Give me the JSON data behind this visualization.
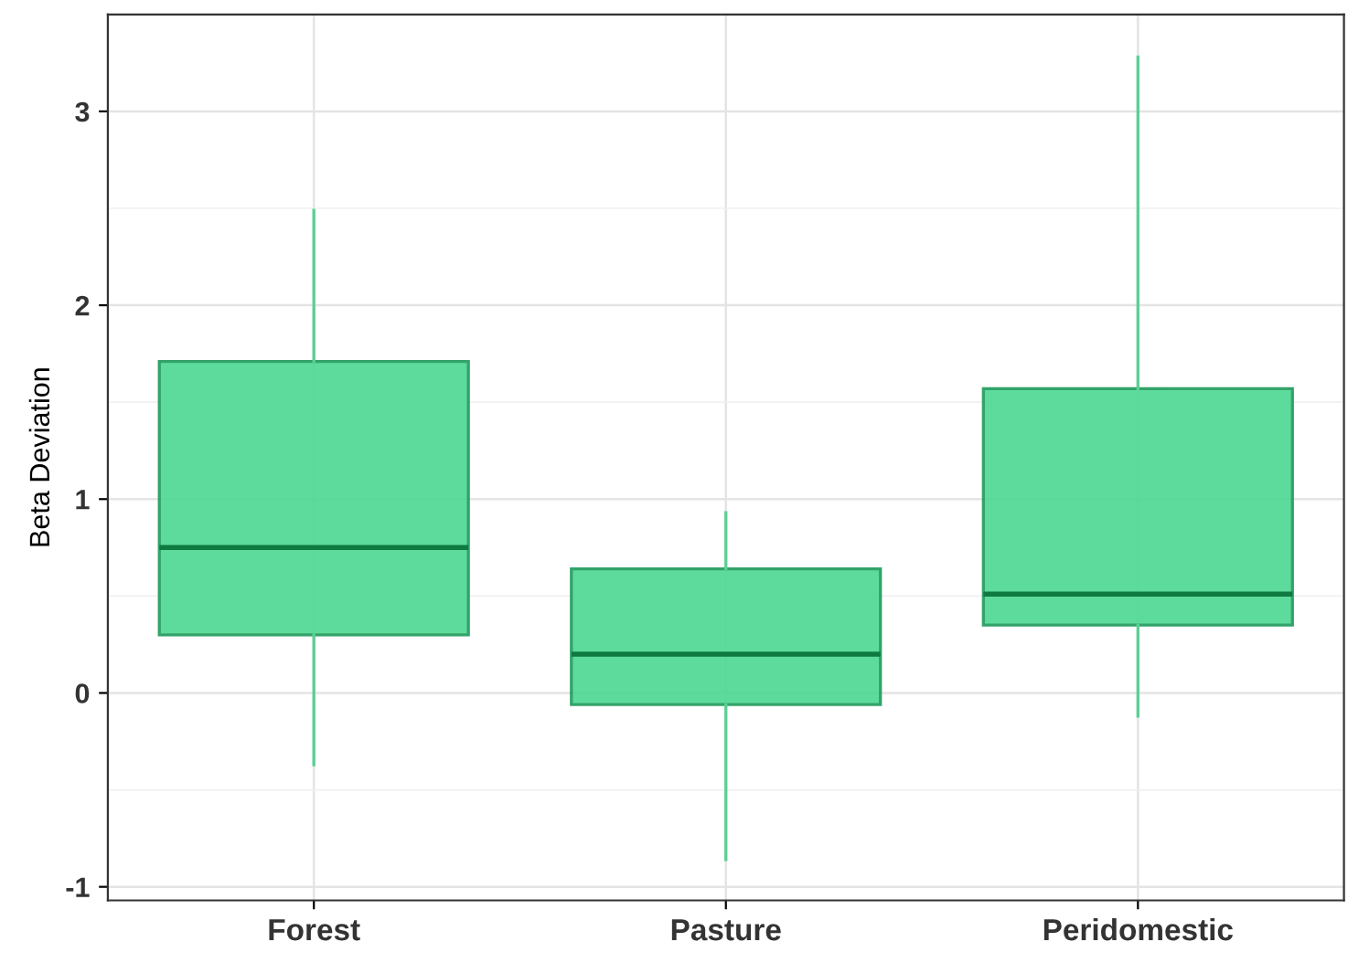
{
  "chart_data": {
    "type": "box",
    "ylabel": "Beta Deviation",
    "categories": [
      "Forest",
      "Pasture",
      "Peridomestic"
    ],
    "boxes": [
      {
        "low": -0.37,
        "q1": 0.3,
        "median": 0.75,
        "q3": 1.71,
        "high": 2.49
      },
      {
        "low": -0.86,
        "q1": -0.06,
        "median": 0.2,
        "q3": 0.64,
        "high": 0.93
      },
      {
        "low": -0.12,
        "q1": 0.35,
        "median": 0.51,
        "q3": 1.57,
        "high": 3.28
      }
    ],
    "color": "#4cd893",
    "ylim": [
      -1.07,
      3.5
    ],
    "yticks": [
      -1,
      {
        "value": -0.5,
        "label": null
      },
      0,
      {
        "value": 0.5,
        "label": null
      },
      1,
      {
        "value": 1.5,
        "label": null
      },
      2,
      {
        "value": 2.5,
        "label": null
      },
      3
    ],
    "grid": true
  }
}
